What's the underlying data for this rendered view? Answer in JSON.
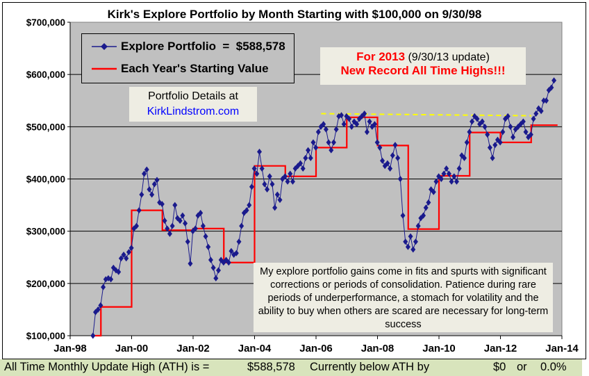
{
  "chart_data": {
    "type": "line",
    "title": "Kirk's Explore Portfolio by Month Starting with $100,000 on 9/30/98",
    "ylim": [
      100000,
      700000
    ],
    "yticks": [
      100000,
      200000,
      300000,
      400000,
      500000,
      600000,
      700000
    ],
    "ytick_labels": [
      "$100,000",
      "$200,000",
      "$300,000",
      "$400,000",
      "$500,000",
      "$600,000",
      "$700,000"
    ],
    "xlim": [
      "1998-01",
      "2014-01"
    ],
    "xtick_labels": [
      "Jan-98",
      "Jan-00",
      "Jan-02",
      "Jan-04",
      "Jan-06",
      "Jan-08",
      "Jan-10",
      "Jan-12",
      "Jan-14"
    ],
    "grid": "horizontal",
    "colors": {
      "plot_bg": "#c0c0c0",
      "portfolio": "#1a1a8c",
      "yearly_start": "#ff0000",
      "ath_line": "#ffff00"
    },
    "series": [
      {
        "name": "Explore Portfolio",
        "legend_label": "Explore Portfolio  =  $588,578",
        "marker": "diamond",
        "monthly_values_by_year": {
          "1998": {
            "start_month": 9,
            "values": [
              100000,
              145000,
              150000,
              158000
            ]
          },
          "1999": {
            "start_month": 1,
            "values": [
              193000,
              208000,
              210000,
              208000,
              230000,
              225000,
              222000,
              248000,
              255000,
              248000,
              260000,
              268000
            ]
          },
          "2000": {
            "start_month": 1,
            "values": [
              305000,
              310000,
              340000,
              370000,
              410000,
              418000,
              380000,
              370000,
              390000,
              398000,
              355000,
              352000
            ]
          },
          "2001": {
            "start_month": 1,
            "values": [
              320000,
              305000,
              295000,
              310000,
              350000,
              325000,
              320000,
              330000,
              315000,
              280000,
              238000,
              300000
            ]
          },
          "2002": {
            "start_month": 1,
            "values": [
              305000,
              330000,
              335000,
              310000,
              290000,
              270000,
              245000,
              230000,
              210000,
              225000,
              245000,
              240000
            ]
          },
          "2003": {
            "start_month": 1,
            "values": [
              245000,
              240000,
              262000,
              255000,
              258000,
              280000,
              310000,
              335000,
              340000,
              350000,
              385000,
              420000
            ]
          },
          "2004": {
            "start_month": 1,
            "values": [
              410000,
              452000,
              420000,
              390000,
              380000,
              405000,
              390000,
              345000,
              370000,
              360000,
              400000,
              405000
            ]
          },
          "2005": {
            "start_month": 1,
            "values": [
              395000,
              410000,
              395000,
              420000,
              425000,
              430000,
              420000,
              440000,
              455000,
              440000,
              470000,
              460000
            ]
          },
          "2006": {
            "start_month": 1,
            "values": [
              490000,
              500000,
              505000,
              495000,
              470000,
              455000,
              470000,
              495000,
              520000,
              522000,
              505000,
              520000
            ]
          },
          "2007": {
            "start_month": 1,
            "values": [
              515000,
              500000,
              510000,
              505000,
              515000,
              520000,
              525000,
              490000,
              510000,
              500000,
              505000,
              470000
            ]
          },
          "2008": {
            "start_month": 1,
            "values": [
              460000,
              435000,
              425000,
              430000,
              420000,
              445000,
              465000,
              440000,
              400000,
              330000,
              280000,
              270000
            ]
          },
          "2009": {
            "start_month": 1,
            "values": [
              290000,
              265000,
              280000,
              310000,
              325000,
              330000,
              345000,
              355000,
              380000,
              375000,
              395000,
              405000
            ]
          },
          "2010": {
            "start_month": 1,
            "values": [
              400000,
              410000,
              420000,
              410000,
              395000,
              405000,
              395000,
              420000,
              445000,
              440000,
              470000,
              490000
            ]
          },
          "2011": {
            "start_month": 1,
            "values": [
              510000,
              520000,
              515000,
              505000,
              510000,
              500000,
              485000,
              460000,
              440000,
              465000,
              475000,
              470000
            ]
          },
          "2012": {
            "start_month": 1,
            "values": [
              490000,
              515000,
              520000,
              500000,
              480000,
              495000,
              500000,
              505000,
              510000,
              490000,
              480000,
              485000
            ]
          },
          "2013": {
            "start_month": 1,
            "values": [
              515000,
              525000,
              535000,
              530000,
              550000,
              550000,
              570000,
              575000,
              588578
            ]
          }
        }
      },
      {
        "name": "Each Year's Starting Value",
        "legend_label": "Each Year's Starting Value",
        "step_values_by_year": {
          "1998": 100000,
          "1999": 155000,
          "2000": 340000,
          "2001": 302000,
          "2002": 305000,
          "2003": 240000,
          "2004": 425000,
          "2005": 405000,
          "2006": 460000,
          "2007": 518000,
          "2008": 464000,
          "2009": 304000,
          "2010": 406000,
          "2011": 489000,
          "2012": 470000,
          "2013": 503000
        }
      },
      {
        "line_style": "dashed",
        "from": [
          "2006-03",
          525000
        ],
        "to": [
          "2013-01",
          521000
        ]
      }
    ]
  },
  "record_box": {
    "line1_red": "For 2013",
    "line1_rest": " (9/30/13 update)",
    "line2": "New Record All Time Highs!!!"
  },
  "details_box": {
    "line1": "Portfolio Details at",
    "link": "KirkLindstrom.com"
  },
  "note": "My explore portfolio gains come in fits and spurts with significant corrections or periods of consolidation.  Patience during rare periods of underperformance, a stomach for volatility and the ability to buy when others are scared are necessary for long-term success",
  "bottom_bar": {
    "label": "All Time Monthly Update High (ATH) is =",
    "ath": "$588,578",
    "below_label": "Currently below ATH by",
    "below_amount": "$0",
    "or": "or",
    "below_pct": "0.0%"
  }
}
